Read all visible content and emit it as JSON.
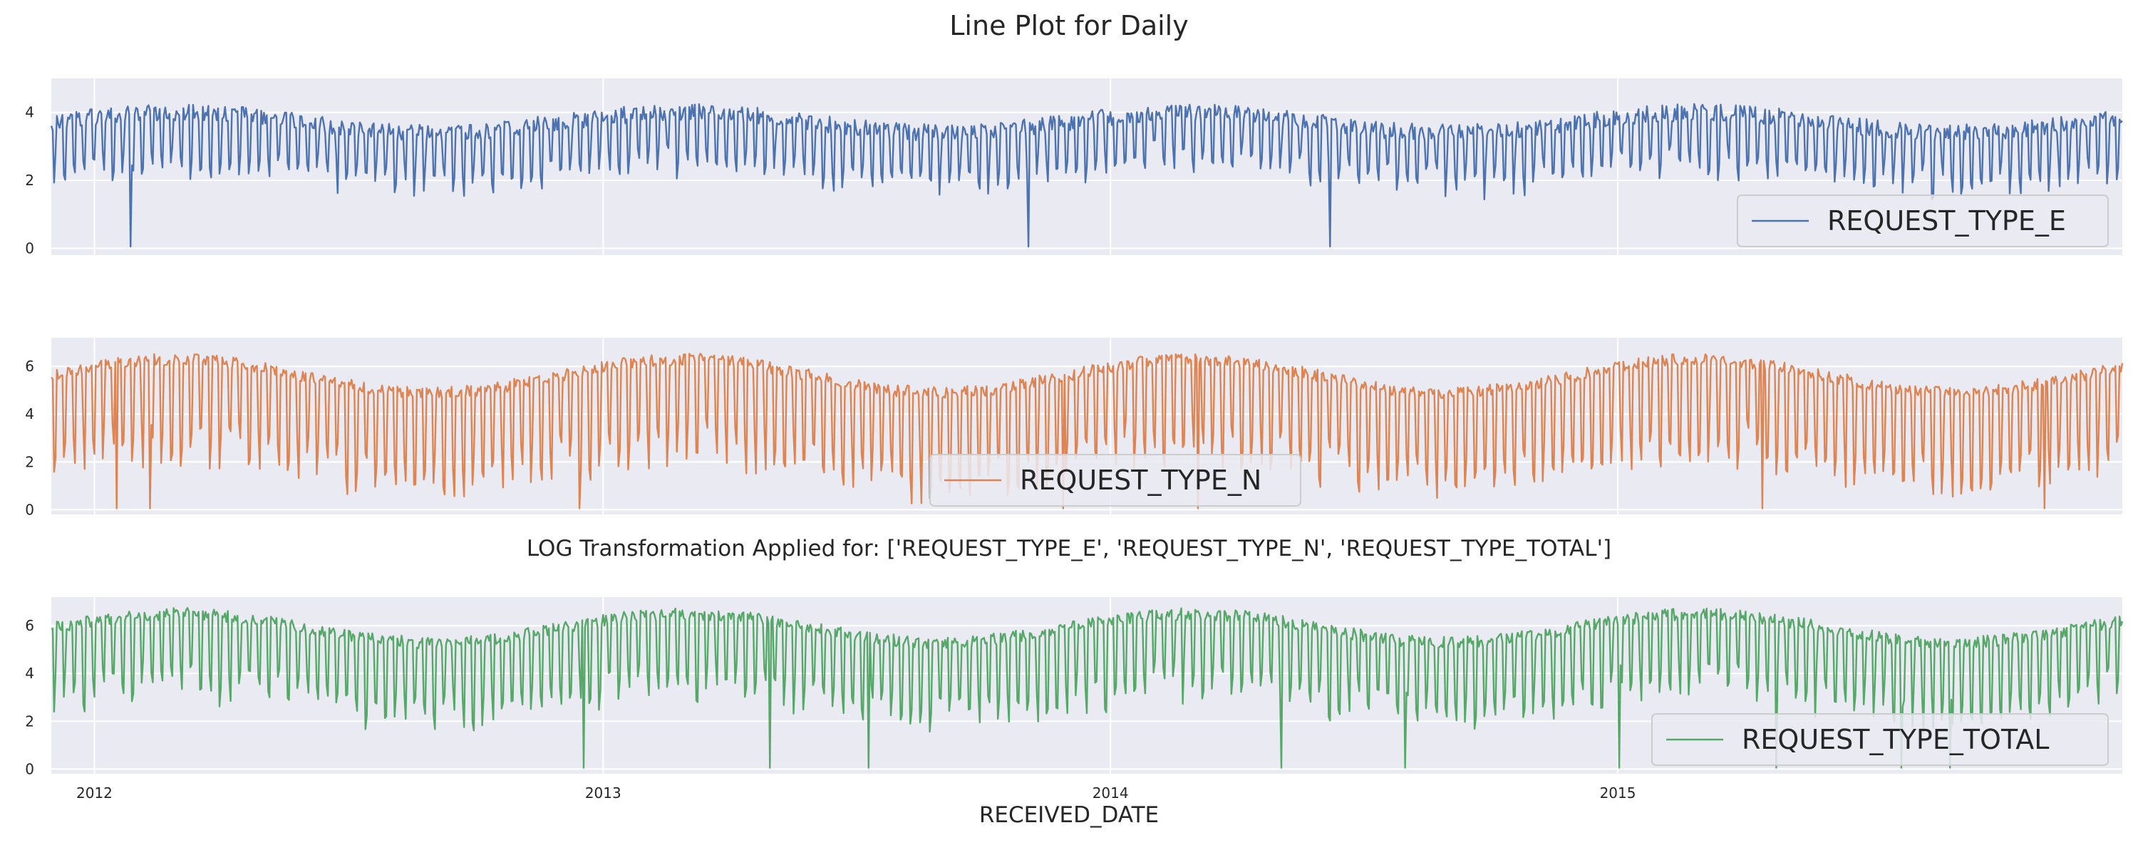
{
  "figure": {
    "title": "Line Plot for Daily",
    "subtitle": "LOG Transformation Applied for: ['REQUEST_TYPE_E', 'REQUEST_TYPE_N', 'REQUEST_TYPE_TOTAL']",
    "xlabel": "RECEIVED_DATE",
    "x_tick_labels": [
      "2012",
      "2013",
      "2014",
      "2015"
    ],
    "panel_bg": "#eaeaf2",
    "grid_color": "#ffffff"
  },
  "chart_data": [
    {
      "type": "line",
      "series": [
        {
          "name": "REQUEST_TYPE_E",
          "color": "#4c72b0",
          "baseline": 3.7,
          "amplitude": 1.8,
          "trend": 0.3
        }
      ],
      "x_range": [
        "2011-12-01",
        "2015-12-30"
      ],
      "xlabel": "RECEIVED_DATE",
      "ylim": [
        -0.2,
        5.0
      ],
      "yticks": [
        0,
        2,
        4
      ],
      "ytick_labels": [
        "0",
        "2",
        "4"
      ],
      "legend_label": "REQUEST_TYPE_E",
      "legend_placement": "lower right",
      "grid": true
    },
    {
      "type": "line",
      "series": [
        {
          "name": "REQUEST_TYPE_N",
          "color": "#dd8452",
          "baseline": 5.6,
          "amplitude": 4.5,
          "trend": 0.7
        }
      ],
      "x_range": [
        "2011-12-01",
        "2015-12-30"
      ],
      "xlabel": "RECEIVED_DATE",
      "ylim": [
        -0.2,
        7.2
      ],
      "yticks": [
        0,
        2,
        4,
        6
      ],
      "ytick_labels": [
        "0",
        "2",
        "4",
        "6"
      ],
      "legend_label": "REQUEST_TYPE_N",
      "legend_placement": "lower center",
      "grid": true
    },
    {
      "type": "line",
      "series": [
        {
          "name": "REQUEST_TYPE_TOTAL",
          "color": "#55a868",
          "baseline": 5.9,
          "amplitude": 3.6,
          "trend": 0.6
        }
      ],
      "x_range": [
        "2011-12-01",
        "2015-12-30"
      ],
      "xlabel": "RECEIVED_DATE",
      "ylim": [
        -0.2,
        7.2
      ],
      "yticks": [
        0,
        2,
        4,
        6
      ],
      "ytick_labels": [
        "0",
        "2",
        "4",
        "6"
      ],
      "legend_label": "REQUEST_TYPE_TOTAL",
      "legend_placement": "lower right",
      "grid": true
    }
  ]
}
